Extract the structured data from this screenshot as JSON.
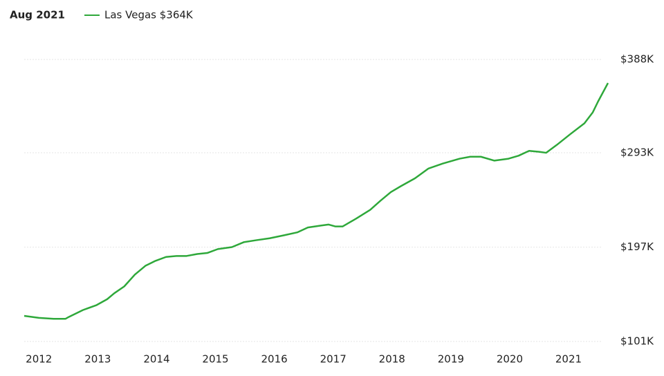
{
  "chart_data": {
    "type": "line",
    "title": "Aug 2021",
    "x": [
      2011.75,
      2012.0,
      2012.25,
      2012.45,
      2012.51,
      2012.75,
      2012.98,
      2013.16,
      2013.28,
      2013.45,
      2013.63,
      2013.81,
      2013.98,
      2014.16,
      2014.34,
      2014.51,
      2014.69,
      2014.86,
      2015.04,
      2015.28,
      2015.48,
      2015.69,
      2015.92,
      2016.16,
      2016.39,
      2016.57,
      2016.8,
      2016.92,
      2017.04,
      2017.16,
      2017.39,
      2017.63,
      2017.8,
      2017.98,
      2018.15,
      2018.39,
      2018.62,
      2018.86,
      2019.15,
      2019.33,
      2019.51,
      2019.74,
      2019.98,
      2020.15,
      2020.33,
      2020.5,
      2020.62,
      2020.8,
      2021.03,
      2021.27,
      2021.41,
      2021.5,
      2021.67
    ],
    "series": [
      {
        "name": "Las Vegas $364K",
        "color": "#2ea83a",
        "values": [
          127000,
          125000,
          124000,
          124000,
          126000,
          133000,
          138000,
          144000,
          150000,
          157000,
          169000,
          178000,
          183000,
          187000,
          188000,
          188000,
          190000,
          191000,
          195000,
          197000,
          202000,
          204000,
          206000,
          209000,
          212000,
          217000,
          219000,
          220000,
          218000,
          218000,
          226000,
          235000,
          244000,
          253000,
          259000,
          267000,
          277000,
          282000,
          287000,
          289000,
          289000,
          285000,
          287000,
          290000,
          295000,
          294000,
          293000,
          301000,
          312000,
          323000,
          334000,
          345000,
          364000
        ]
      }
    ],
    "xlim": [
      2011.75,
      2021.67
    ],
    "xticks": [
      2012,
      2013,
      2014,
      2015,
      2016,
      2017,
      2018,
      2019,
      2020,
      2021
    ],
    "ylim": [
      101000,
      388000
    ],
    "yticks": [
      {
        "value": 101000,
        "label": "$101K"
      },
      {
        "value": 197000,
        "label": "$197K"
      },
      {
        "value": 293000,
        "label": "$293K"
      },
      {
        "value": 388000,
        "label": "$388K"
      }
    ],
    "grid": true
  }
}
